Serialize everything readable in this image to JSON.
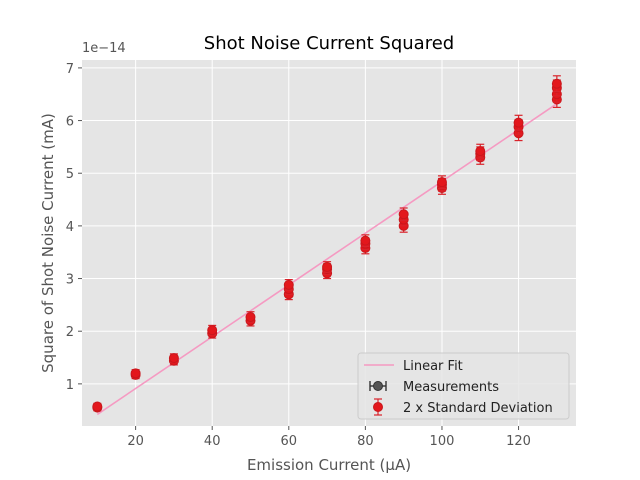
{
  "chart_data": {
    "type": "scatter",
    "title": "Shot Noise Current Squared",
    "xlabel": "Emission Current (μA)",
    "ylabel": "Square of Shot Noise Current (mA)",
    "y_offset_label": "1e−14",
    "xlim": [
      6,
      135
    ],
    "ylim": [
      0.2,
      7.15
    ],
    "xticks": [
      20,
      40,
      60,
      80,
      100,
      120
    ],
    "yticks": [
      1,
      2,
      3,
      4,
      5,
      6,
      7
    ],
    "grid": true,
    "legend_position": "lower-right",
    "legend": [
      "Linear Fit",
      "Measurements",
      "2 x Standard Deviation"
    ],
    "fit": {
      "name": "Linear Fit",
      "x": [
        10,
        130
      ],
      "y": [
        0.42,
        6.32
      ]
    },
    "points": [
      {
        "x": 10,
        "y": 0.55,
        "err": 0.06
      },
      {
        "x": 10,
        "y": 0.57,
        "err": 0.06
      },
      {
        "x": 20,
        "y": 1.17,
        "err": 0.07
      },
      {
        "x": 20,
        "y": 1.2,
        "err": 0.07
      },
      {
        "x": 30,
        "y": 1.44,
        "err": 0.08
      },
      {
        "x": 30,
        "y": 1.49,
        "err": 0.08
      },
      {
        "x": 40,
        "y": 1.96,
        "err": 0.09
      },
      {
        "x": 40,
        "y": 2.02,
        "err": 0.09
      },
      {
        "x": 50,
        "y": 2.2,
        "err": 0.1
      },
      {
        "x": 50,
        "y": 2.27,
        "err": 0.1
      },
      {
        "x": 60,
        "y": 2.7,
        "err": 0.1
      },
      {
        "x": 60,
        "y": 2.8,
        "err": 0.1
      },
      {
        "x": 60,
        "y": 2.88,
        "err": 0.1
      },
      {
        "x": 70,
        "y": 3.1,
        "err": 0.1
      },
      {
        "x": 70,
        "y": 3.18,
        "err": 0.1
      },
      {
        "x": 70,
        "y": 3.22,
        "err": 0.1
      },
      {
        "x": 80,
        "y": 3.58,
        "err": 0.11
      },
      {
        "x": 80,
        "y": 3.66,
        "err": 0.11
      },
      {
        "x": 80,
        "y": 3.72,
        "err": 0.11
      },
      {
        "x": 90,
        "y": 4.0,
        "err": 0.12
      },
      {
        "x": 90,
        "y": 4.12,
        "err": 0.12
      },
      {
        "x": 90,
        "y": 4.22,
        "err": 0.12
      },
      {
        "x": 100,
        "y": 4.72,
        "err": 0.12
      },
      {
        "x": 100,
        "y": 4.78,
        "err": 0.12
      },
      {
        "x": 100,
        "y": 4.83,
        "err": 0.12
      },
      {
        "x": 110,
        "y": 5.3,
        "err": 0.13
      },
      {
        "x": 110,
        "y": 5.37,
        "err": 0.13
      },
      {
        "x": 110,
        "y": 5.42,
        "err": 0.13
      },
      {
        "x": 120,
        "y": 5.76,
        "err": 0.14
      },
      {
        "x": 120,
        "y": 5.88,
        "err": 0.14
      },
      {
        "x": 120,
        "y": 5.96,
        "err": 0.14
      },
      {
        "x": 130,
        "y": 6.4,
        "err": 0.15
      },
      {
        "x": 130,
        "y": 6.5,
        "err": 0.15
      },
      {
        "x": 130,
        "y": 6.62,
        "err": 0.15
      },
      {
        "x": 130,
        "y": 6.7,
        "err": 0.15
      }
    ],
    "colors": {
      "fit": "#f59ac2",
      "point_fill": "#e3171c",
      "point_edge": "#c8171c",
      "errorbar": "#d9232b",
      "measurement_marker": "#333333",
      "axes_bg": "#e5e5e5",
      "grid": "#ffffff"
    }
  }
}
